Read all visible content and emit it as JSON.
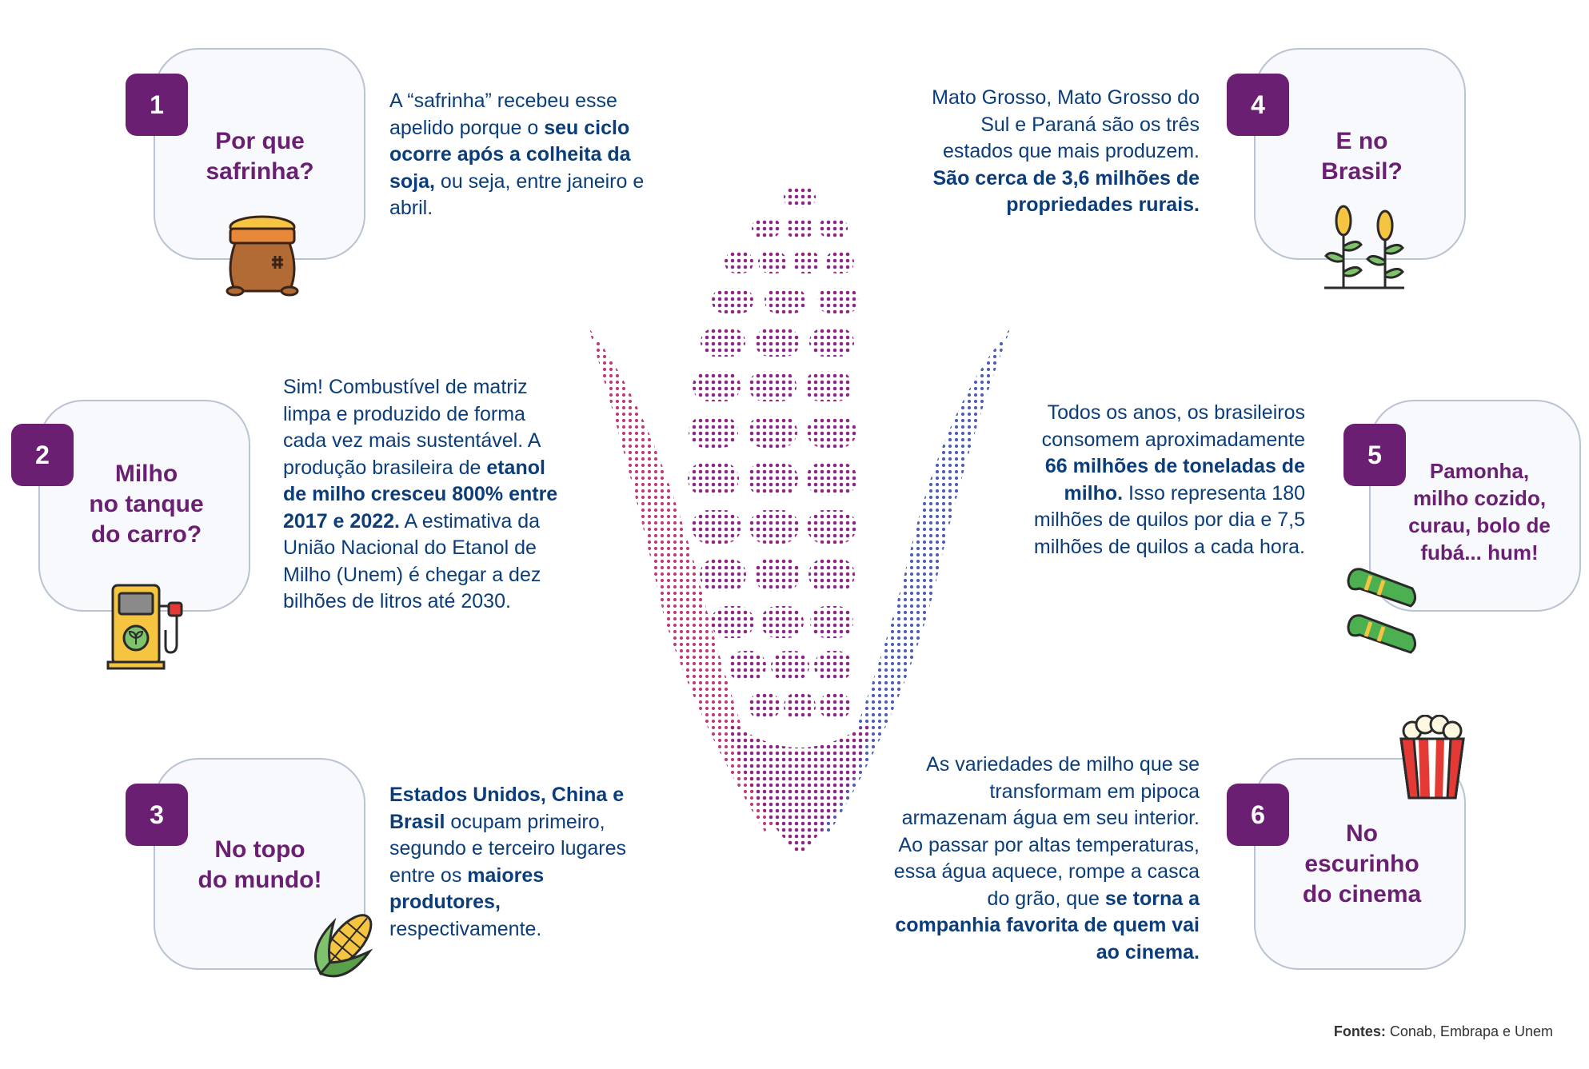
{
  "colors": {
    "accent": "#6b1f72",
    "text": "#0a3d7a",
    "card_bg": "#f7f9fc",
    "card_border": "#b9c3d3"
  },
  "items": [
    {
      "number": "1",
      "title": [
        "Por que",
        "safrinha?"
      ],
      "icon": "grain-sack-icon",
      "text": [
        {
          "t": "A “safrinha” recebeu esse apelido porque o "
        },
        {
          "t": "seu ciclo ocorre após a colheita da soja,",
          "b": true
        },
        {
          "t": " ou seja, entre janeiro e abril."
        }
      ]
    },
    {
      "number": "2",
      "title": [
        "Milho",
        "no tanque",
        "do carro?"
      ],
      "icon": "fuel-pump-icon",
      "text": [
        {
          "t": "Sim! Combustível de matriz limpa e produzido de forma cada vez mais sustentável. A produção brasileira de "
        },
        {
          "t": "etanol de milho cresceu 800% entre 2017 e 2022.",
          "b": true
        },
        {
          "t": " A estimativa da União Nacional do Etanol de Milho (Unem) é chegar a dez bilhões de litros até 2030."
        }
      ]
    },
    {
      "number": "3",
      "title": [
        "No topo",
        "do mundo!"
      ],
      "icon": "corn-cob-icon",
      "text": [
        {
          "t": "Estados Unidos, China e Brasil",
          "b": true
        },
        {
          "t": " ocupam primeiro, segundo e terceiro lugares entre os "
        },
        {
          "t": "maiores produtores,",
          "b": true
        },
        {
          "t": " respectivamente."
        }
      ]
    },
    {
      "number": "4",
      "title": [
        "E no",
        "Brasil?"
      ],
      "icon": "corn-plants-icon",
      "text": [
        {
          "t": "Mato Grosso, Mato Grosso do Sul e Paraná são os três estados que mais produzem. "
        },
        {
          "t": "São cerca de 3,6 milhões de propriedades rurais.",
          "b": true
        }
      ]
    },
    {
      "number": "5",
      "title": [
        "Pamonha,",
        "milho cozido,",
        "curau, bolo de",
        "fubá... hum!"
      ],
      "icon": "pamonha-icon",
      "text": [
        {
          "t": "Todos os anos, os brasileiros consomem aproximadamente "
        },
        {
          "t": "66 milhões de toneladas de milho.",
          "b": true
        },
        {
          "t": " Isso representa 180 milhões de quilos por dia e 7,5 milhões de quilos a cada hora."
        }
      ]
    },
    {
      "number": "6",
      "title": [
        "No",
        "escurinho",
        "do cinema"
      ],
      "icon": "popcorn-icon",
      "text": [
        {
          "t": "As variedades de milho que se transformam em pipoca armazenam água em seu interior. Ao passar por altas temperaturas, essa água aquece, rompe a casca do grão, que "
        },
        {
          "t": "se torna a companhia favorita de quem vai ao cinema.",
          "b": true
        }
      ]
    }
  ],
  "center_image": "dotted-corn-illustration",
  "sources": {
    "label": "Fontes:",
    "value": " Conab, Embrapa e Unem"
  }
}
